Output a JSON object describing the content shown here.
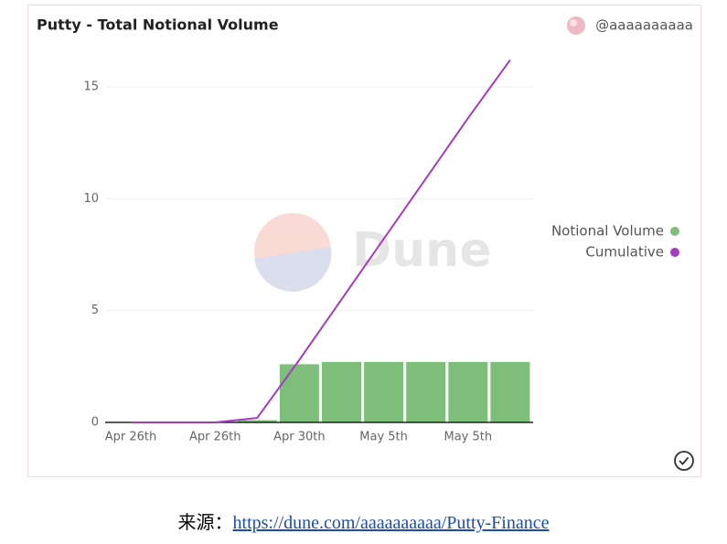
{
  "chart_data": {
    "type": "combo",
    "title": "Putty - Total Notional Volume",
    "watermark": "Dune",
    "categories": [
      "Apr 26th",
      null,
      "Apr 26th",
      null,
      "Apr 30th",
      null,
      "May 5th",
      null,
      "May 5th",
      null
    ],
    "series": [
      {
        "name": "Notional Volume",
        "type": "bar",
        "color": "#7dbf7a",
        "values": [
          0,
          0,
          0,
          0.1,
          2.6,
          2.7,
          2.7,
          2.7,
          2.7,
          2.7
        ]
      },
      {
        "name": "Cumulative",
        "type": "line",
        "color": "#a63bbf",
        "values": [
          0,
          0,
          0,
          0.2,
          2.8,
          5.5,
          8.2,
          10.9,
          13.6,
          16.2
        ]
      }
    ],
    "ylim": [
      0,
      17
    ],
    "yticks": [
      0,
      5,
      10,
      15
    ],
    "grid": true,
    "legend": "right"
  },
  "header": {
    "author": "@aaaaaaaaaa"
  },
  "caption": {
    "label": "来源：",
    "link": "https://dune.com/aaaaaaaaaa/Putty-Finance"
  }
}
